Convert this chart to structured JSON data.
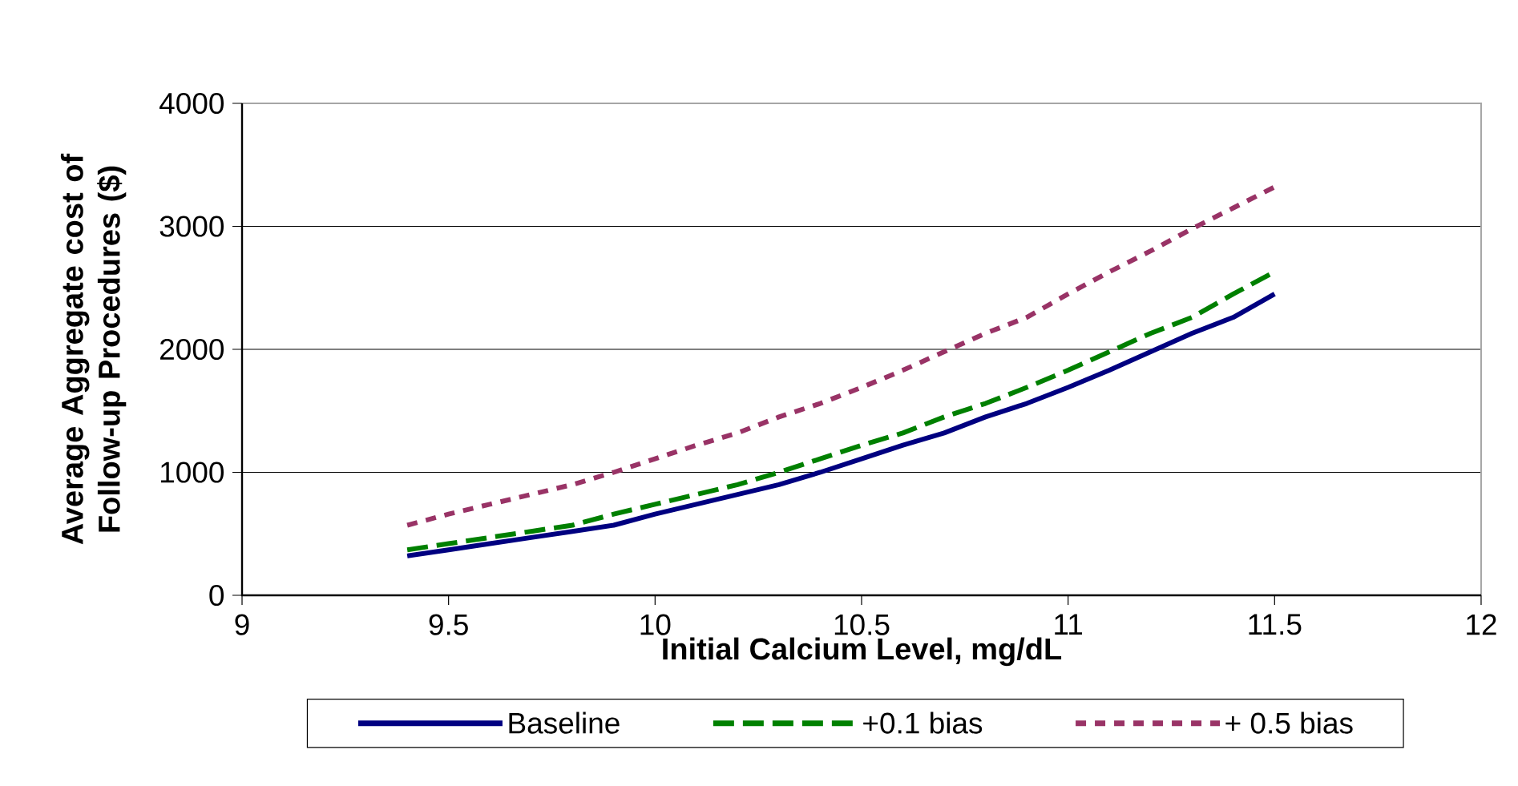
{
  "chart_data": {
    "type": "line",
    "xlabel": "Initial Calcium Level, mg/dL",
    "ylabel": "Average Aggregate cost of Follow-up Procedures ($)",
    "x": [
      9.4,
      9.5,
      9.6,
      9.7,
      9.8,
      9.9,
      10.0,
      10.1,
      10.2,
      10.3,
      10.4,
      10.5,
      10.6,
      10.7,
      10.8,
      10.9,
      11.0,
      11.1,
      11.2,
      11.3,
      11.4,
      11.5
    ],
    "series": [
      {
        "name": "Baseline",
        "color": "#000080",
        "line_style": "solid",
        "values": [
          320,
          370,
          420,
          470,
          520,
          570,
          660,
          740,
          820,
          900,
          1000,
          1110,
          1220,
          1320,
          1450,
          1560,
          1690,
          1830,
          1980,
          2130,
          2260,
          2450
        ]
      },
      {
        "name": "+0.1 bias",
        "color": "#008000",
        "line_style": "dashed",
        "values": [
          370,
          420,
          470,
          520,
          570,
          660,
          740,
          820,
          900,
          1000,
          1110,
          1220,
          1320,
          1450,
          1560,
          1690,
          1830,
          1980,
          2130,
          2260,
          2450,
          2630
        ]
      },
      {
        "name": "+ 0.5 bias",
        "color": "#993366",
        "line_style": "dotted",
        "values": [
          570,
          660,
          740,
          820,
          900,
          1000,
          1110,
          1220,
          1320,
          1450,
          1560,
          1690,
          1830,
          1980,
          2130,
          2260,
          2450,
          2630,
          2800,
          2980,
          3150,
          3320
        ]
      }
    ],
    "xlim": [
      9,
      12
    ],
    "ylim": [
      0,
      4000
    ],
    "xticks": [
      9,
      9.5,
      10,
      10.5,
      11,
      11.5,
      12
    ],
    "yticks": [
      0,
      1000,
      2000,
      3000,
      4000
    ],
    "grid": "y",
    "legend": "bottom",
    "marker": "none"
  }
}
